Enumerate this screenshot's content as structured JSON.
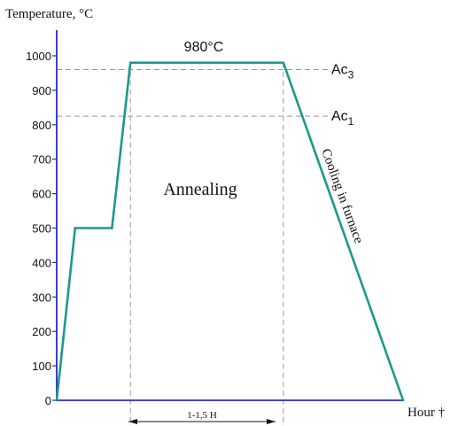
{
  "colors": {
    "axis": "#2b2bb0",
    "profile": "#1a9a8a",
    "reference": "#9a9a9a",
    "text": "#111111"
  },
  "chart_data": {
    "type": "line",
    "title": "",
    "ylabel": "Temperature, °C",
    "xlabel": "Hour †",
    "ylim": [
      0,
      1000
    ],
    "yticks": [
      "0",
      "100",
      "200",
      "300",
      "400",
      "500",
      "600",
      "700",
      "800",
      "900",
      "1000"
    ],
    "grid": false,
    "series": [
      {
        "points": [
          {
            "x": 0,
            "y": 0
          },
          {
            "x": 1,
            "y": 500
          },
          {
            "x": 3,
            "y": 500
          },
          {
            "x": 4,
            "y": 980
          },
          {
            "x": 12.3,
            "y": 980
          },
          {
            "x": 18.8,
            "y": 0
          }
        ]
      }
    ],
    "reference_lines": [
      {
        "label_base": "Ac",
        "label_sub": "3",
        "y": 960
      },
      {
        "label_base": "Ac",
        "label_sub": "1",
        "y": 825
      }
    ],
    "annotations": {
      "peak": "980°C",
      "stage": "Annealing",
      "cooling": "Cooling in furnace",
      "duration": "1-1,5 H"
    }
  }
}
